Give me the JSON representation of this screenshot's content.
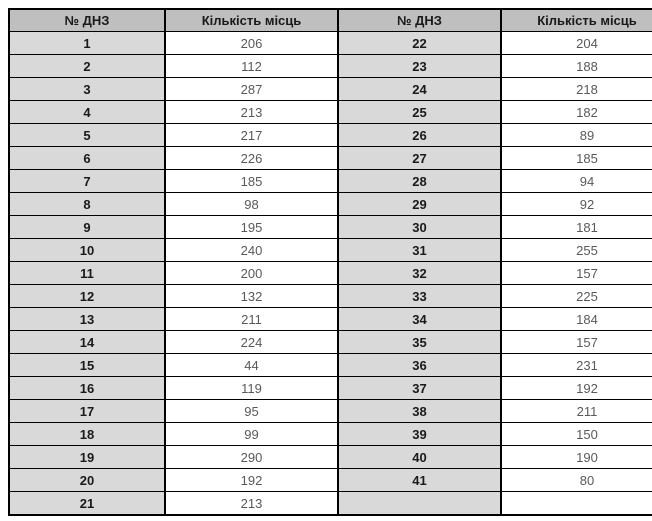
{
  "table": {
    "headers": [
      "№ ДНЗ",
      "Кількість місць",
      "№ ДНЗ",
      "Кількість місць"
    ],
    "rows": [
      [
        "1",
        "206",
        "22",
        "204"
      ],
      [
        "2",
        "112",
        "23",
        "188"
      ],
      [
        "3",
        "287",
        "24",
        "218"
      ],
      [
        "4",
        "213",
        "25",
        "182"
      ],
      [
        "5",
        "217",
        "26",
        "89"
      ],
      [
        "6",
        "226",
        "27",
        "185"
      ],
      [
        "7",
        "185",
        "28",
        "94"
      ],
      [
        "8",
        "98",
        "29",
        "92"
      ],
      [
        "9",
        "195",
        "30",
        "181"
      ],
      [
        "10",
        "240",
        "31",
        "255"
      ],
      [
        "11",
        "200",
        "32",
        "157"
      ],
      [
        "12",
        "132",
        "33",
        "225"
      ],
      [
        "13",
        "211",
        "34",
        "184"
      ],
      [
        "14",
        "224",
        "35",
        "157"
      ],
      [
        "15",
        "44",
        "36",
        "231"
      ],
      [
        "16",
        "119",
        "37",
        "192"
      ],
      [
        "17",
        "95",
        "38",
        "211"
      ],
      [
        "18",
        "99",
        "39",
        "150"
      ],
      [
        "19",
        "290",
        "40",
        "190"
      ],
      [
        "20",
        "192",
        "41",
        "80"
      ],
      [
        "21",
        "213",
        "",
        ""
      ]
    ]
  },
  "colors": {
    "header_bg": "#bfbfbf",
    "number_cell_bg": "#d9d9d9",
    "value_cell_bg": "#ffffff",
    "border": "#000000",
    "header_text": "#1a1a1a",
    "number_text": "#1a1a1a",
    "value_text": "#595959"
  }
}
